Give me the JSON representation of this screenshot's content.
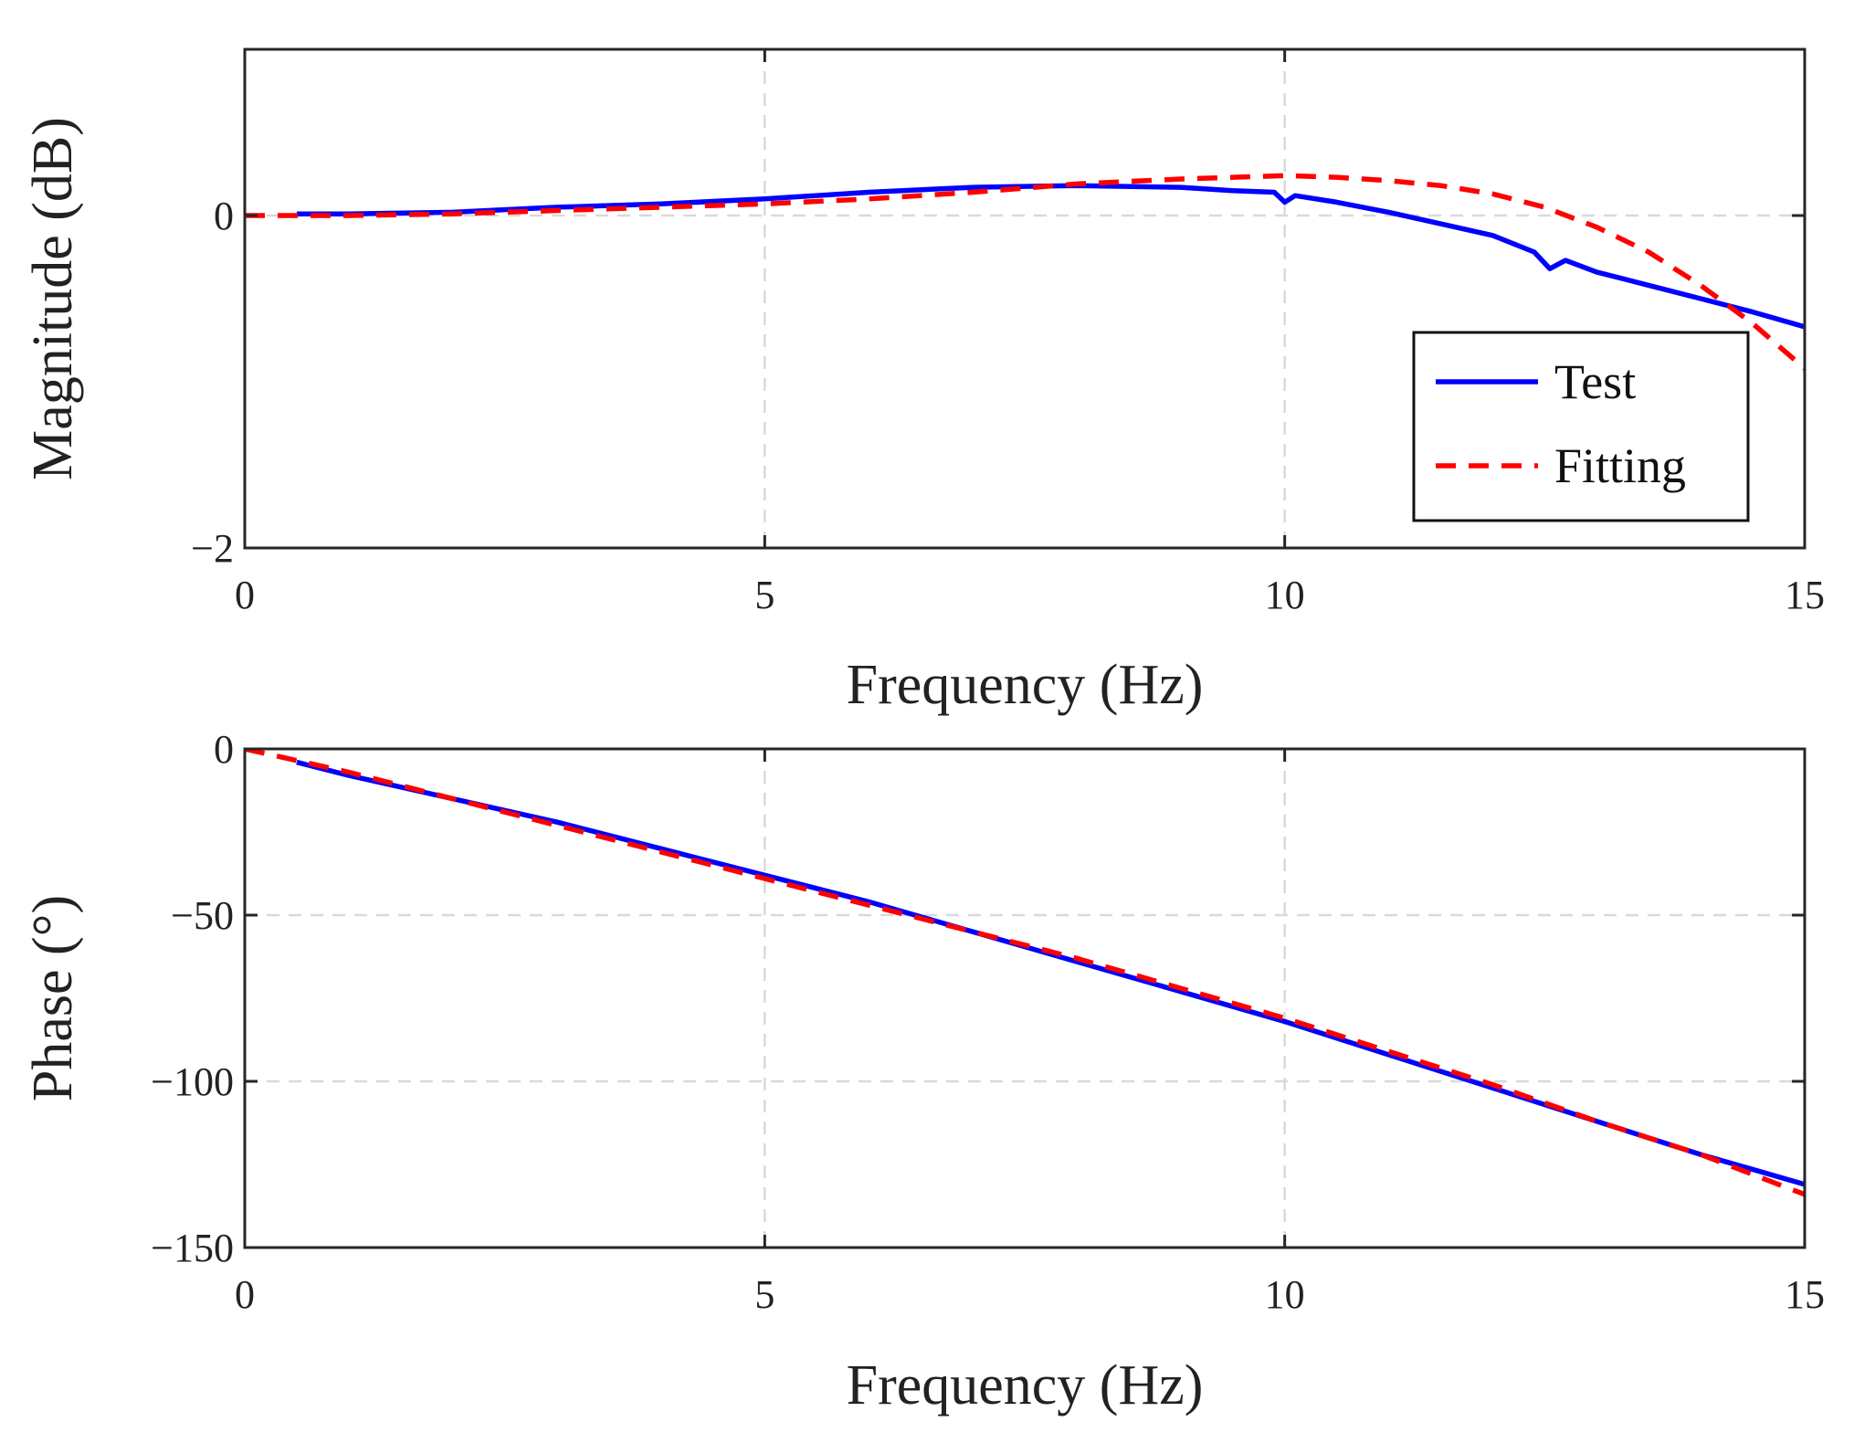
{
  "chart_data": [
    {
      "type": "line",
      "id": "magnitude",
      "title": "",
      "xlabel": "Frequency (Hz)",
      "ylabel": "Magnitude (dB)",
      "xlim": [
        0,
        15
      ],
      "ylim": [
        -2,
        1
      ],
      "xticks": [
        0,
        5,
        10,
        15
      ],
      "yticks": [
        -2,
        0
      ],
      "xtick_labels": [
        "0",
        "5",
        "10",
        "15"
      ],
      "ytick_labels": [
        "−2",
        "0"
      ],
      "grid": true,
      "legend": {
        "position": "bottom-right",
        "entries": [
          "Test",
          "Fitting"
        ]
      },
      "series": [
        {
          "name": "Test",
          "color": "#0000ff",
          "style": "solid",
          "x": [
            0.5,
            1,
            2,
            3,
            4,
            5,
            6,
            7,
            8,
            9,
            9.5,
            9.9,
            10,
            10.1,
            10.5,
            11,
            11.5,
            12,
            12.4,
            12.55,
            12.7,
            13,
            13.5,
            14,
            14.5,
            15
          ],
          "y": [
            0.01,
            0.01,
            0.02,
            0.05,
            0.07,
            0.1,
            0.14,
            0.17,
            0.18,
            0.17,
            0.15,
            0.14,
            0.08,
            0.12,
            0.08,
            0.02,
            -0.05,
            -0.12,
            -0.22,
            -0.32,
            -0.27,
            -0.34,
            -0.42,
            -0.5,
            -0.58,
            -0.67
          ]
        },
        {
          "name": "Fitting",
          "color": "#ff0000",
          "style": "dashed",
          "x": [
            0,
            1,
            2,
            3,
            4,
            5,
            6,
            7,
            8,
            9,
            10,
            10.5,
            11,
            11.5,
            12,
            12.5,
            13,
            13.5,
            14,
            14.5,
            15
          ],
          "y": [
            0.0,
            0.0,
            0.01,
            0.03,
            0.05,
            0.07,
            0.1,
            0.14,
            0.19,
            0.22,
            0.24,
            0.23,
            0.21,
            0.18,
            0.13,
            0.05,
            -0.07,
            -0.22,
            -0.42,
            -0.65,
            -0.92
          ]
        }
      ]
    },
    {
      "type": "line",
      "id": "phase",
      "title": "",
      "xlabel": "Frequency (Hz)",
      "ylabel": "Phase (°)",
      "xlim": [
        0,
        15
      ],
      "ylim": [
        -150,
        0
      ],
      "xticks": [
        0,
        5,
        10,
        15
      ],
      "yticks": [
        -150,
        -100,
        -50,
        0
      ],
      "xtick_labels": [
        "0",
        "5",
        "10",
        "15"
      ],
      "ytick_labels": [
        "−150",
        "−100",
        "−50",
        "0"
      ],
      "grid": true,
      "series": [
        {
          "name": "Test",
          "color": "#0000ff",
          "style": "solid",
          "x": [
            0.5,
            1,
            2,
            3,
            4,
            5,
            6,
            7,
            8,
            9,
            10,
            11,
            12,
            13,
            14,
            15
          ],
          "y": [
            -4,
            -8,
            -15,
            -22,
            -30,
            -38,
            -46,
            -55,
            -64,
            -73,
            -82,
            -92,
            -102,
            -112,
            -122,
            -131
          ]
        },
        {
          "name": "Fitting",
          "color": "#ff0000",
          "style": "dashed",
          "x": [
            0,
            1,
            2,
            3,
            4,
            5,
            6,
            7,
            8,
            9,
            10,
            11,
            12,
            13,
            14,
            15
          ],
          "y": [
            0,
            -7,
            -15,
            -23,
            -31,
            -39,
            -47,
            -55,
            -63,
            -72,
            -81,
            -91,
            -101,
            -112,
            -122,
            -134
          ]
        }
      ]
    }
  ]
}
